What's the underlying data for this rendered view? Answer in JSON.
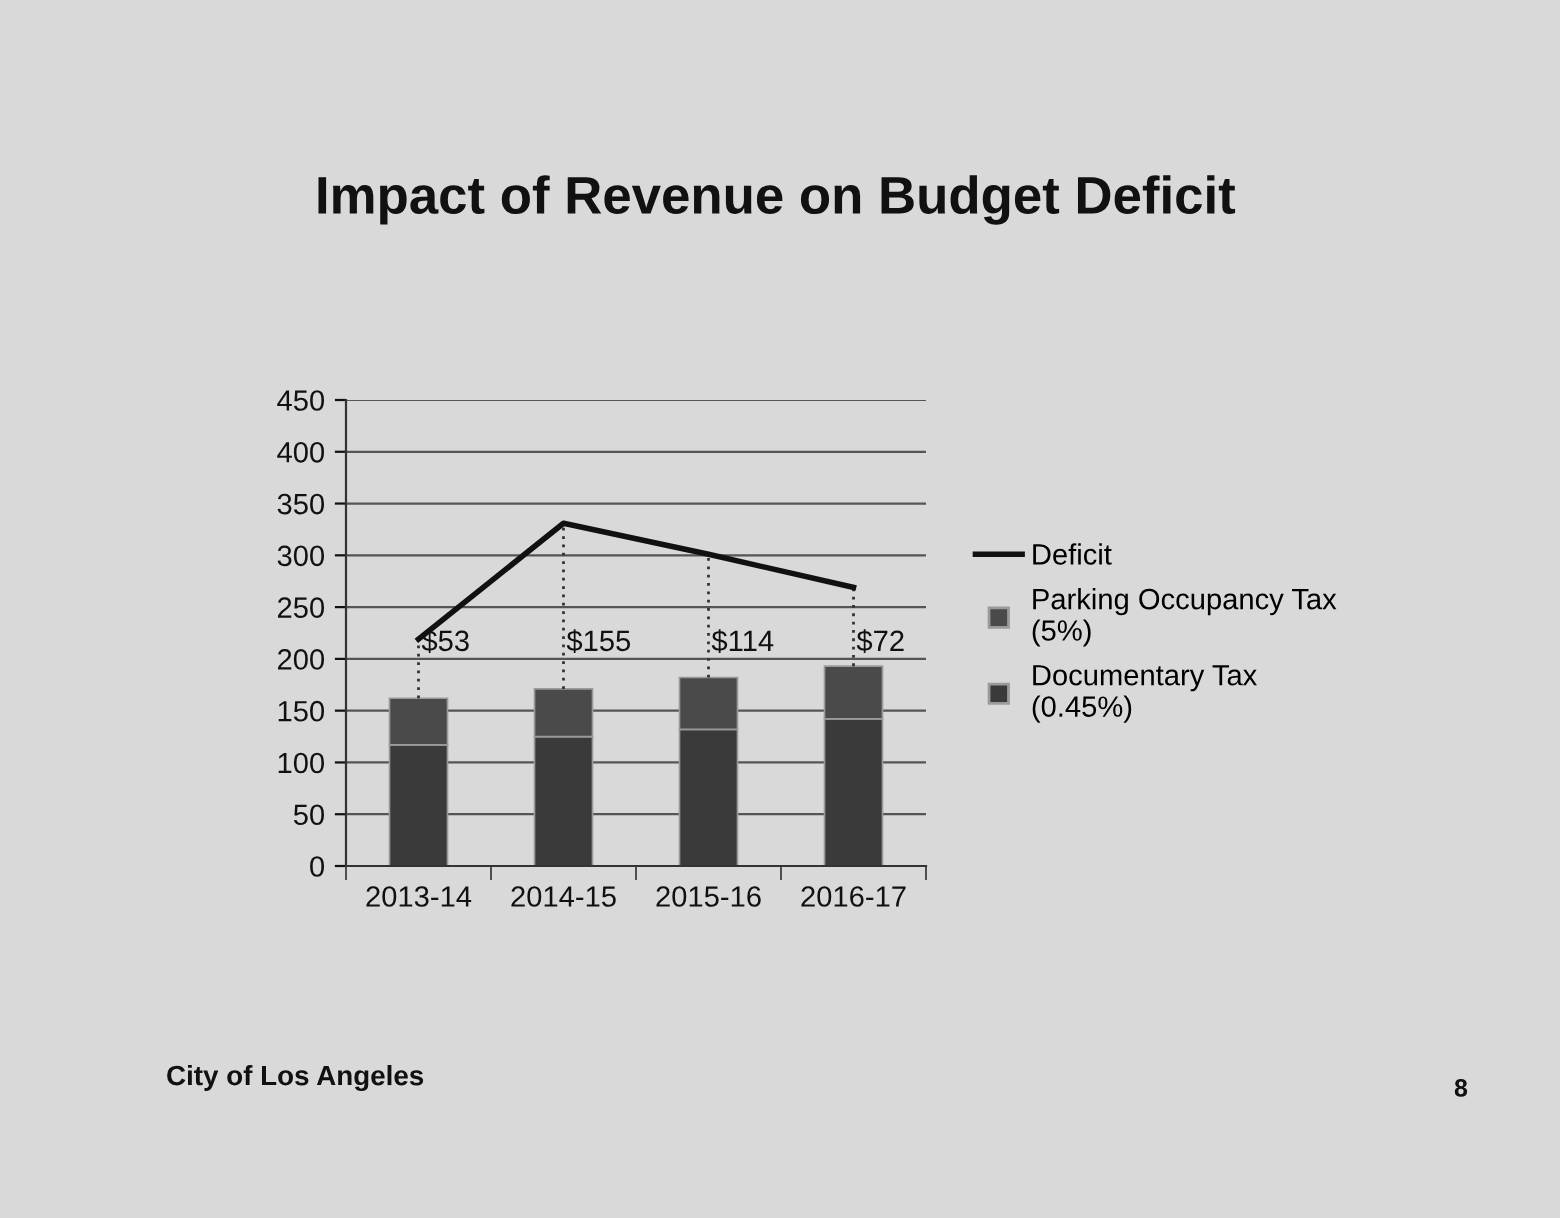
{
  "chart_data": {
    "type": "bar",
    "title": "Impact of Revenue on Budget Deficit",
    "categories": [
      "2013-14",
      "2014-15",
      "2015-16",
      "2016-17"
    ],
    "stacked": true,
    "series": [
      {
        "name": "Documentary Tax\n(0.45%)",
        "color": "#3a3a3a",
        "values": [
          117,
          125,
          132,
          142
        ]
      },
      {
        "name": "Parking Occupancy Tax\n(5%)",
        "color": "#4a4a4a",
        "values": [
          45,
          46,
          50,
          51
        ]
      },
      {
        "name": "Deficit",
        "type": "line",
        "color": "#111111",
        "values": [
          219,
          331,
          301,
          269
        ],
        "errors": [
          [
            162,
            219
          ],
          [
            171,
            331
          ],
          [
            182,
            301
          ],
          [
            193,
            269
          ]
        ]
      }
    ],
    "ylim": [
      0,
      450
    ],
    "yticks": [
      0,
      50,
      100,
      150,
      200,
      250,
      300,
      350,
      400,
      450
    ],
    "grid": "y",
    "legend": "right",
    "marker": "none",
    "line_style": "solid",
    "annotations": [
      {
        "text": "$53",
        "x": "2013-14",
        "y": 215
      },
      {
        "text": "$155",
        "x": "2014-15",
        "y": 215
      },
      {
        "text": "$114",
        "x": "2015-16",
        "y": 215
      },
      {
        "text": "$72",
        "x": "2016-17",
        "y": 215
      },
      "City of Los Angeles",
      "8"
    ]
  }
}
